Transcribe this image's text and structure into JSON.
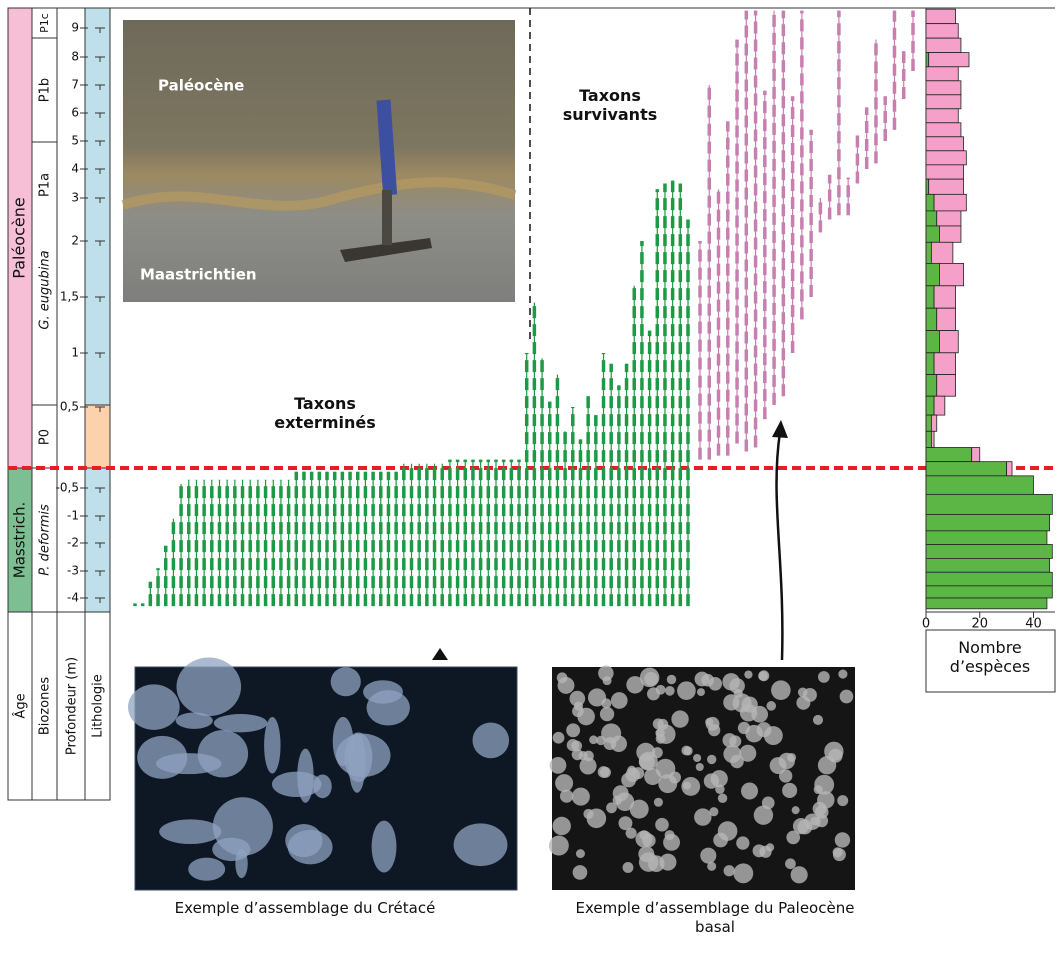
{
  "column_headers": [
    "Âge",
    "Biozones",
    "Profondeur (m)",
    "Lithologie"
  ],
  "ages": [
    "Paléocène",
    "Masstrich."
  ],
  "biozones": [
    "P1c",
    "P1b",
    "P1a",
    "G. eugubina",
    "P0",
    "P. deformis"
  ],
  "photo": {
    "label_top": "Paléocène",
    "label_bottom": "Maastrichtien"
  },
  "annotations": {
    "extinct": "Taxons exterminés",
    "survivors": "Taxons survivants"
  },
  "captions": [
    "Exemple d’assemblage du Crétacé",
    "Exemple d’assemblage du Paleocène basal"
  ],
  "chart_data": [
    {
      "type": "range",
      "yticks": [
        9,
        8,
        7,
        6,
        5,
        4,
        3,
        2,
        {
          "value": 1.5,
          "label": "1,5"
        },
        1,
        {
          "value": 0.5,
          "label": "0,5"
        },
        {
          "value": -0.5,
          "label": "-0,5"
        },
        -1,
        -2,
        -3,
        -4
      ],
      "series": [
        {
          "color": "#1e9a46",
          "ranges": [
            [
              -4.3,
              -4.2
            ],
            [
              -4.3,
              -4.2
            ],
            [
              -4.3,
              -3.4
            ],
            [
              -4.3,
              -2.9
            ],
            [
              -4.3,
              -2.1
            ],
            [
              -4.3,
              -1.1
            ],
            [
              -4.3,
              -0.45
            ],
            [
              -4.3,
              -0.4
            ],
            [
              -4.3,
              -0.4
            ],
            [
              -4.3,
              -0.4
            ],
            [
              -4.3,
              -0.4
            ],
            [
              -4.3,
              -0.4
            ],
            [
              -4.3,
              -0.4
            ],
            [
              -4.3,
              -0.4
            ],
            [
              -4.3,
              -0.4
            ],
            [
              -4.3,
              -0.4
            ],
            [
              -4.3,
              -0.4
            ],
            [
              -4.3,
              -0.4
            ],
            [
              -4.3,
              -0.4
            ],
            [
              -4.3,
              -0.4
            ],
            [
              -4.3,
              -0.4
            ],
            [
              -4.3,
              -0.3
            ],
            [
              -4.3,
              -0.3
            ],
            [
              -4.3,
              -0.3
            ],
            [
              -4.3,
              -0.3
            ],
            [
              -4.3,
              -0.3
            ],
            [
              -4.3,
              -0.3
            ],
            [
              -4.3,
              -0.3
            ],
            [
              -4.3,
              -0.3
            ],
            [
              -4.3,
              -0.3
            ],
            [
              -4.3,
              -0.3
            ],
            [
              -4.3,
              -0.3
            ],
            [
              -4.3,
              -0.3
            ],
            [
              -4.3,
              -0.3
            ],
            [
              -4.3,
              -0.3
            ],
            [
              -4.3,
              -0.2
            ],
            [
              -4.3,
              -0.2
            ],
            [
              -4.3,
              -0.2
            ],
            [
              -4.3,
              -0.2
            ],
            [
              -4.3,
              -0.2
            ],
            [
              -4.3,
              -0.2
            ],
            [
              -4.3,
              -0.15
            ],
            [
              -4.3,
              -0.15
            ],
            [
              -4.3,
              -0.15
            ],
            [
              -4.3,
              -0.15
            ],
            [
              -4.3,
              -0.15
            ],
            [
              -4.3,
              -0.15
            ],
            [
              -4.3,
              -0.15
            ],
            [
              -4.3,
              -0.15
            ],
            [
              -4.3,
              -0.15
            ],
            [
              -4.3,
              -0.15
            ],
            [
              -4.3,
              1.0
            ],
            [
              -4.3,
              1.45
            ],
            [
              -4.3,
              0.95
            ],
            [
              -4.3,
              0.55
            ],
            [
              -4.3,
              0.8
            ],
            [
              -4.3,
              0.2
            ],
            [
              -4.3,
              0.5
            ],
            [
              -4.3,
              0.1
            ],
            [
              -4.3,
              0.6
            ],
            [
              -4.3,
              0.4
            ],
            [
              -4.3,
              1.0
            ],
            [
              -4.3,
              0.9
            ],
            [
              -4.3,
              0.7
            ],
            [
              -4.3,
              0.9
            ],
            [
              -4.3,
              1.6
            ],
            [
              -4.3,
              2.0
            ],
            [
              -4.3,
              1.2
            ],
            [
              -4.3,
              3.3
            ],
            [
              -4.3,
              3.5
            ],
            [
              -4.3,
              3.6
            ],
            [
              -4.3,
              3.5
            ],
            [
              -4.3,
              2.5
            ]
          ]
        },
        {
          "color": "#c77fb0",
          "ranges": [
            [
              -0.15,
              2.0
            ],
            [
              -0.15,
              7.0
            ],
            [
              -0.1,
              3.3
            ],
            [
              -0.1,
              5.7
            ],
            [
              0.05,
              8.6
            ],
            [
              -0.05,
              9.6
            ],
            [
              0.0,
              9.6
            ],
            [
              0.35,
              6.8
            ],
            [
              0.52,
              9.6
            ],
            [
              0.6,
              9.6
            ],
            [
              1.0,
              6.6
            ],
            [
              1.3,
              9.6
            ],
            [
              1.5,
              5.4
            ],
            [
              2.2,
              3.0
            ],
            [
              2.5,
              3.8
            ],
            [
              2.6,
              9.6
            ],
            [
              2.6,
              3.7
            ],
            [
              3.5,
              5.2
            ],
            [
              4.0,
              6.2
            ],
            [
              4.2,
              8.6
            ],
            [
              5.0,
              6.6
            ],
            [
              5.4,
              9.6
            ],
            [
              6.5,
              8.2
            ],
            [
              7.5,
              9.6
            ]
          ]
        }
      ]
    },
    {
      "type": "bar",
      "orientation": "horizontal",
      "xlabel": "Nombre d’espèces",
      "xlim": [
        0,
        48
      ],
      "xticks": [
        0,
        20,
        40
      ],
      "depths": [
        9.4,
        8.9,
        8.4,
        7.9,
        7.4,
        6.9,
        6.4,
        5.9,
        5.4,
        4.9,
        4.4,
        3.9,
        3.4,
        2.9,
        2.5,
        2.2,
        1.9,
        1.7,
        1.5,
        1.3,
        1.1,
        0.9,
        0.7,
        0.5,
        0.3,
        0.1,
        -0.1,
        -0.25,
        -0.45,
        -0.8,
        -1.3,
        -1.8,
        -2.3,
        -2.8,
        -3.3,
        -3.8,
        -4.2
      ],
      "series": [
        {
          "color": "#5cb646",
          "values": [
            0,
            0,
            0,
            1,
            0,
            0,
            0,
            0,
            0,
            0,
            0,
            0,
            1,
            3,
            4,
            5,
            2,
            5,
            3,
            4,
            5,
            3,
            4,
            3,
            2,
            2,
            17,
            30,
            40,
            47,
            46,
            45,
            47,
            46,
            47,
            47,
            45
          ]
        },
        {
          "color": "#f4a0c8",
          "values": [
            11,
            12,
            13,
            15,
            12,
            13,
            13,
            12,
            13,
            14,
            15,
            14,
            13,
            12,
            9,
            8,
            8,
            9,
            8,
            7,
            7,
            8,
            7,
            4,
            2,
            1,
            3,
            2,
            0,
            0,
            0,
            0,
            0,
            0,
            0,
            0,
            0
          ]
        }
      ]
    }
  ]
}
